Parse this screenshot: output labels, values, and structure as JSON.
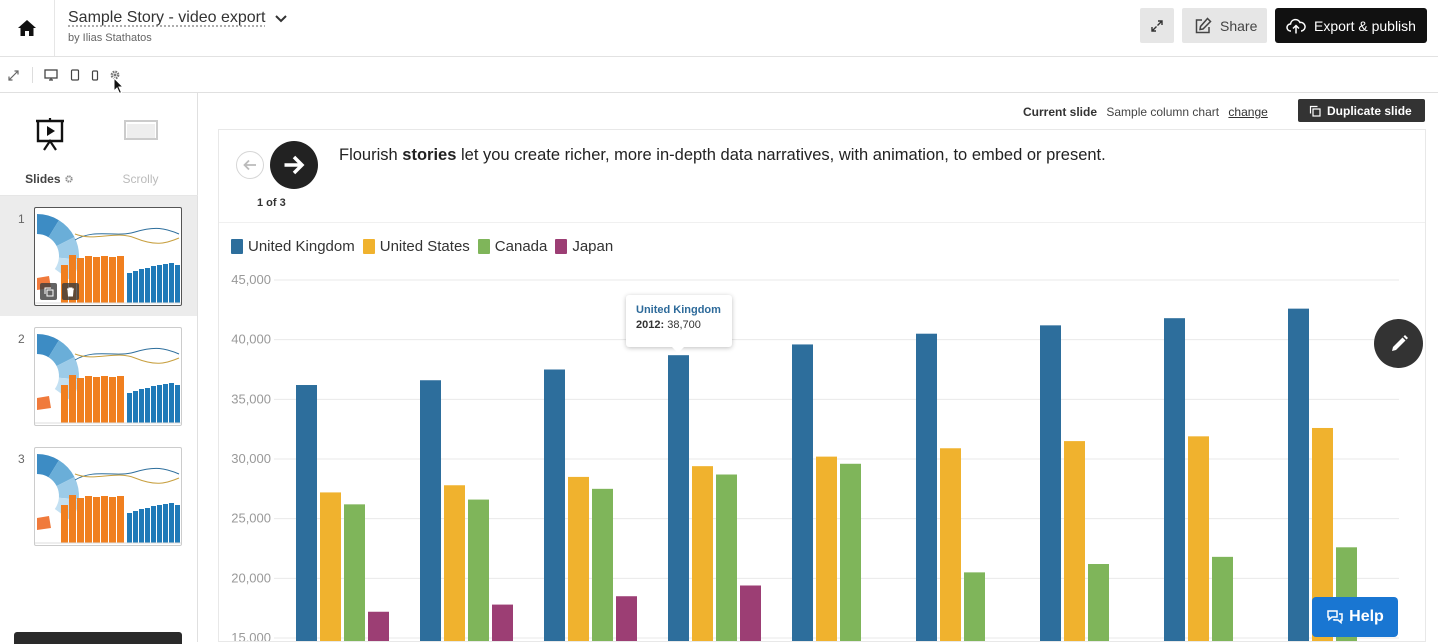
{
  "header": {
    "title": "Sample Story - video export",
    "byline": "by Ilias Stathatos",
    "share_label": "Share",
    "publish_label": "Export & publish"
  },
  "sidebar": {
    "modes": [
      {
        "label": "Slides",
        "active": true
      },
      {
        "label": "Scrolly",
        "active": false
      }
    ],
    "slides": [
      {
        "number": "1",
        "active": true
      },
      {
        "number": "2",
        "active": false
      },
      {
        "number": "3",
        "active": false
      }
    ]
  },
  "main": {
    "current_slide_label": "Current slide",
    "current_slide_value": "Sample column chart",
    "change_label": "change",
    "duplicate_label": "Duplicate slide",
    "caption_pre": "Flourish ",
    "caption_bold": "stories",
    "caption_post": " let you create richer, more in-depth data narratives, with animation, to embed or present.",
    "slide_counter": "1 of 3"
  },
  "tooltip": {
    "series": "United Kingdom",
    "year": "2012:",
    "value": "38,700"
  },
  "help_label": "Help",
  "colors": {
    "accent": "#1976d2",
    "united_kingdom": "#2d6e9c",
    "united_states": "#f0b22e",
    "canada": "#7fb55a",
    "japan": "#9c3e74"
  },
  "chart_data": {
    "type": "bar",
    "categories": [
      "",
      "",
      "",
      "",
      "",
      "",
      "",
      "",
      "",
      ""
    ],
    "series": [
      {
        "name": "United Kingdom",
        "color": "#2d6e9c",
        "values": [
          36200,
          36600,
          37500,
          38700,
          39600,
          40500,
          41200,
          41800,
          42600,
          null
        ]
      },
      {
        "name": "United States",
        "color": "#f0b22e",
        "values": [
          27200,
          27800,
          28500,
          29400,
          30200,
          30900,
          31500,
          31900,
          32600,
          null
        ]
      },
      {
        "name": "Canada",
        "color": "#7fb55a",
        "values": [
          26200,
          26600,
          27500,
          28700,
          29600,
          20500,
          21200,
          21800,
          22600,
          null
        ]
      },
      {
        "name": "Japan",
        "color": "#9c3e74",
        "values": [
          17200,
          17800,
          18500,
          19400,
          null,
          null,
          null,
          null,
          null,
          null
        ]
      }
    ],
    "y_ticks": [
      "45,000",
      "40,000",
      "35,000",
      "30,000",
      "25,000",
      "20,000",
      "15,000"
    ],
    "ylim": [
      15000,
      45000
    ],
    "grid": true,
    "legend_position": "top-left"
  }
}
